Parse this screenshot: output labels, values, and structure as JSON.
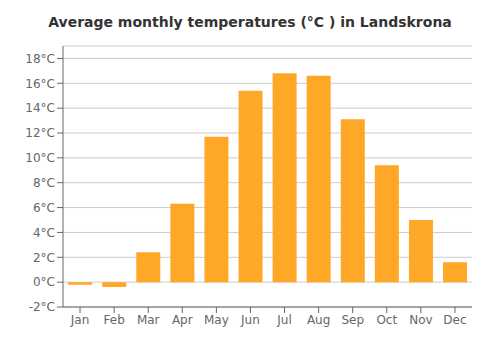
{
  "chart_data": {
    "type": "bar",
    "title": "Average monthly temperatures (°C ) in Landskrona",
    "categories": [
      "Jan",
      "Feb",
      "Mar",
      "Apr",
      "May",
      "Jun",
      "Jul",
      "Aug",
      "Sep",
      "Oct",
      "Nov",
      "Dec"
    ],
    "values": [
      -0.2,
      -0.4,
      2.4,
      6.3,
      11.7,
      15.4,
      16.8,
      16.6,
      13.1,
      9.4,
      5.0,
      1.6
    ],
    "color": "#FFA726",
    "ylim": [
      -2,
      19
    ],
    "yticks": [
      {
        "value": -2,
        "label": "-2°C"
      },
      {
        "value": 0,
        "label": "0°C"
      },
      {
        "value": 2,
        "label": "2°C"
      },
      {
        "value": 4,
        "label": "4°C"
      },
      {
        "value": 6,
        "label": "6°C"
      },
      {
        "value": 8,
        "label": "8°C"
      },
      {
        "value": 10,
        "label": "10°C"
      },
      {
        "value": 12,
        "label": "12°C"
      },
      {
        "value": 14,
        "label": "14°C"
      },
      {
        "value": 16,
        "label": "16°C"
      },
      {
        "value": 18,
        "label": "18°C"
      }
    ],
    "grid": true
  }
}
